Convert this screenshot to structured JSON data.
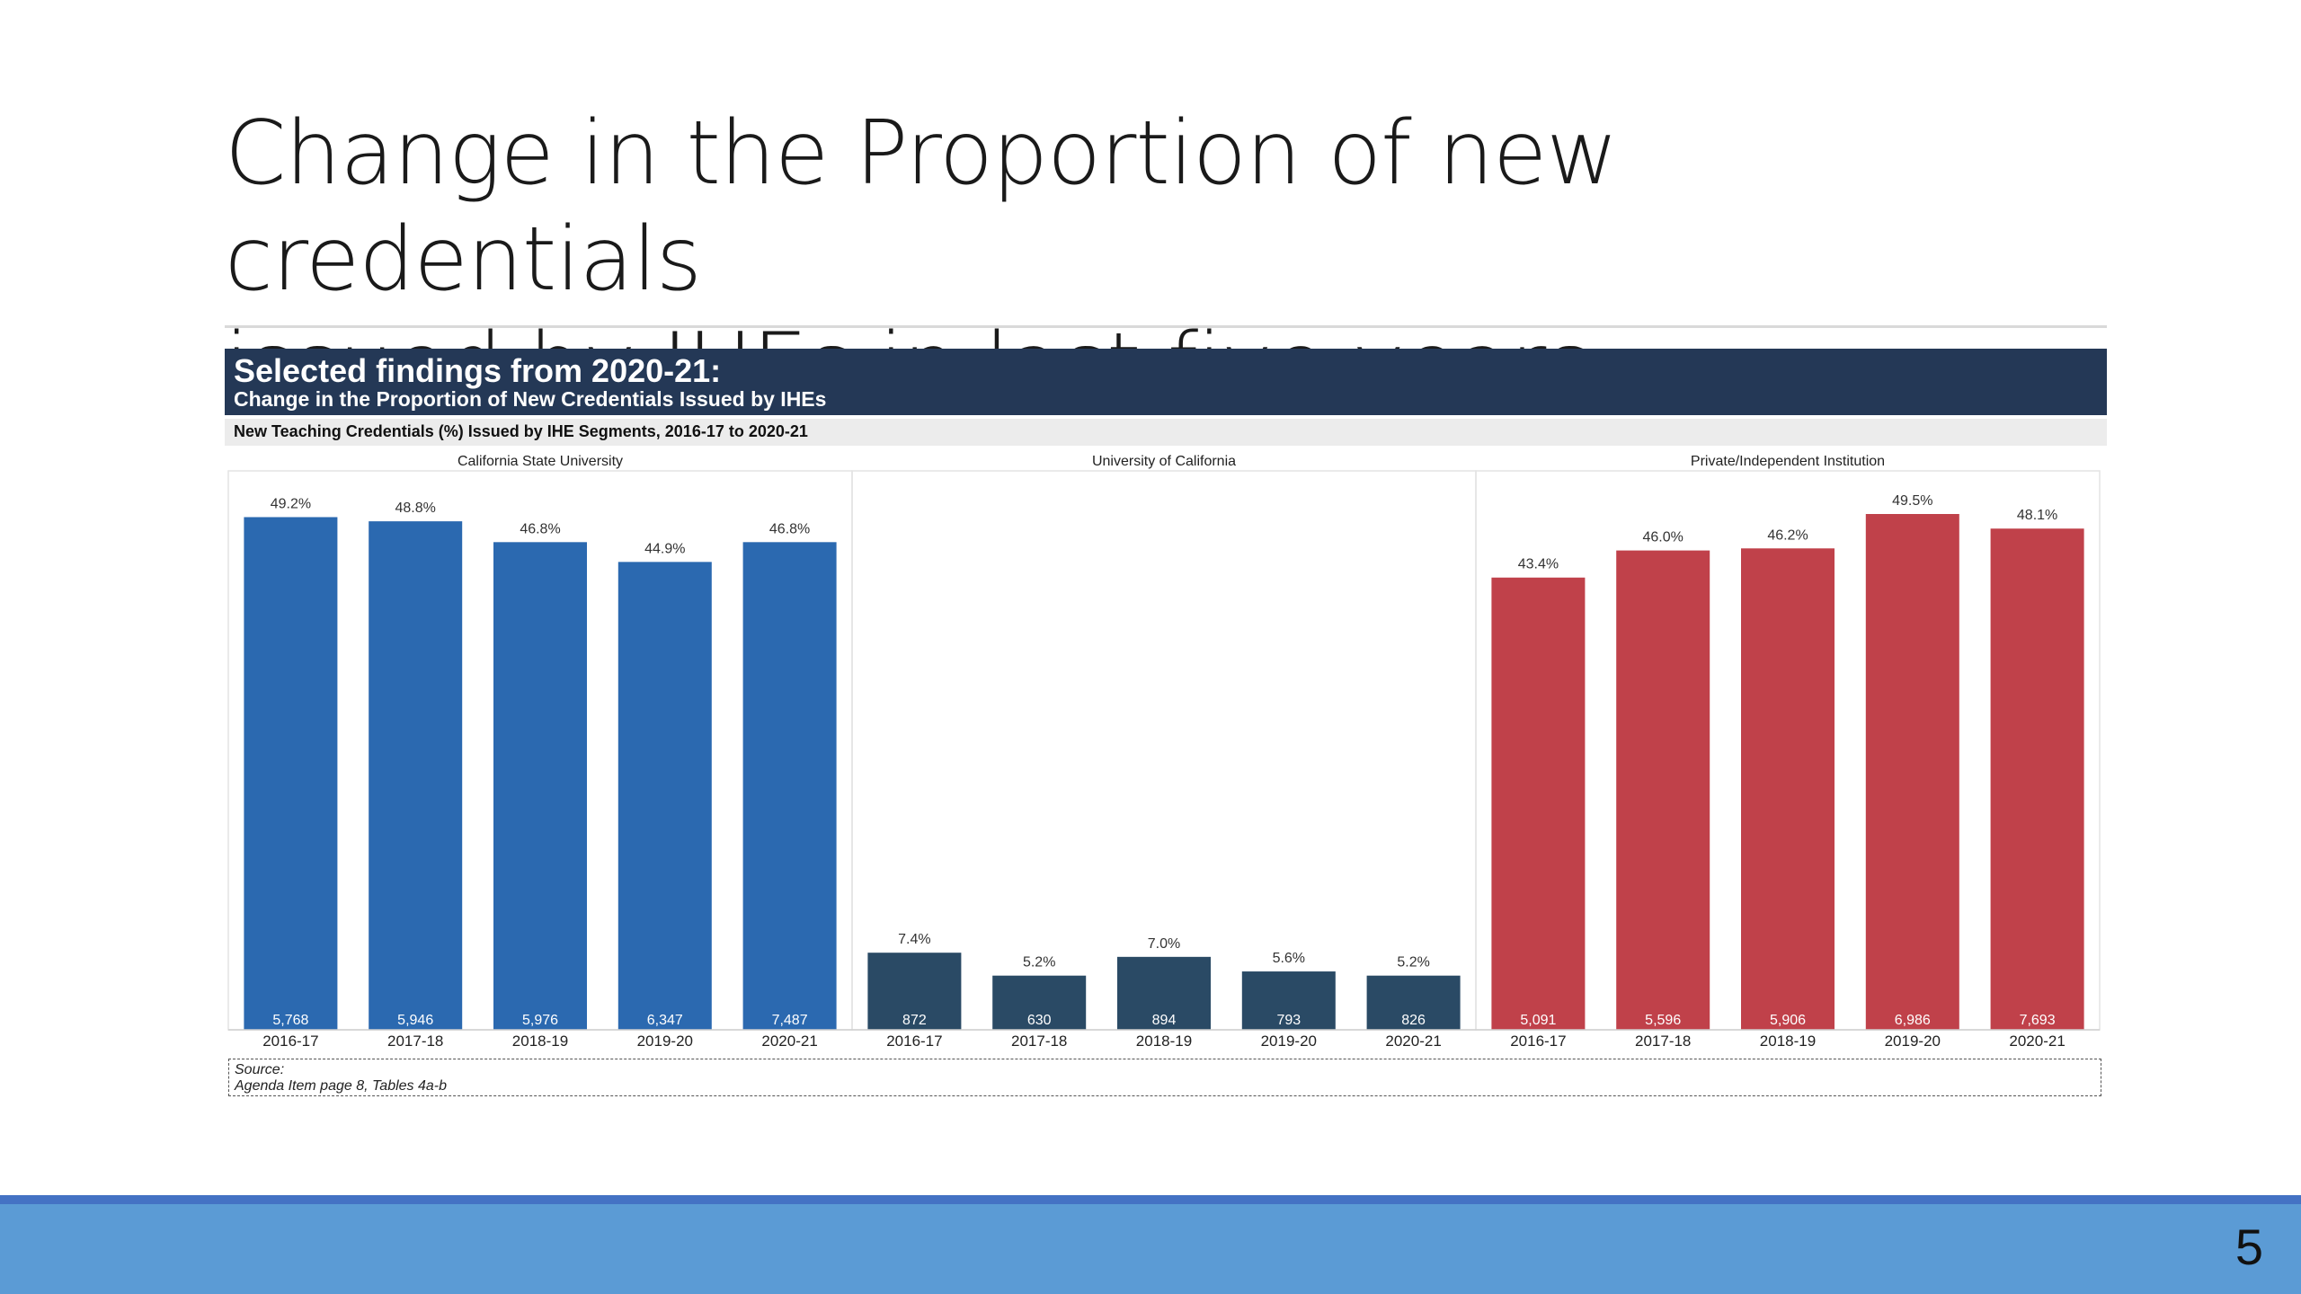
{
  "slide": {
    "title_line1": "Change in the Proportion of new credentials",
    "title_line2": "issued by IHEs in last five years",
    "page_number": "5"
  },
  "banner": {
    "title": "Selected findings from 2020-21:",
    "subtitle": "Change in the Proportion of New Credentials Issued by IHEs"
  },
  "subheader": "New Teaching Credentials (%) Issued by IHE Segments, 2016-17 to 2020-21",
  "source": {
    "label": "Source:",
    "text": "Agenda Item page 8, Tables 4a-b"
  },
  "colors": {
    "csu": "#2b69b0",
    "uc": "#2a4a65",
    "private": "#c0414a",
    "banner": "#243856",
    "footer": "#5b9bd5"
  },
  "chart_data": {
    "type": "bar",
    "ylim": [
      0,
      55
    ],
    "categories": [
      "2016-17",
      "2017-18",
      "2018-19",
      "2019-20",
      "2020-21"
    ],
    "series": [
      {
        "name": "California State University",
        "values": [
          49.2,
          48.8,
          46.8,
          44.9,
          46.8
        ],
        "labels": [
          "49.2%",
          "48.8%",
          "46.8%",
          "44.9%",
          "46.8%"
        ],
        "counts": [
          "5,768",
          "5,946",
          "5,976",
          "6,347",
          "7,487"
        ],
        "color": "#2b69b0"
      },
      {
        "name": "University of California",
        "values": [
          7.4,
          5.2,
          7.0,
          5.6,
          5.2
        ],
        "labels": [
          "7.4%",
          "5.2%",
          "7.0%",
          "5.6%",
          "5.2%"
        ],
        "counts": [
          "872",
          "630",
          "894",
          "793",
          "826"
        ],
        "color": "#2a4a65"
      },
      {
        "name": "Private/Independent Institution",
        "values": [
          43.4,
          46.0,
          46.2,
          49.5,
          48.1
        ],
        "labels": [
          "43.4%",
          "46.0%",
          "46.2%",
          "49.5%",
          "48.1%"
        ],
        "counts": [
          "5,091",
          "5,596",
          "5,906",
          "6,986",
          "7,693"
        ],
        "color": "#c0414a"
      }
    ]
  }
}
